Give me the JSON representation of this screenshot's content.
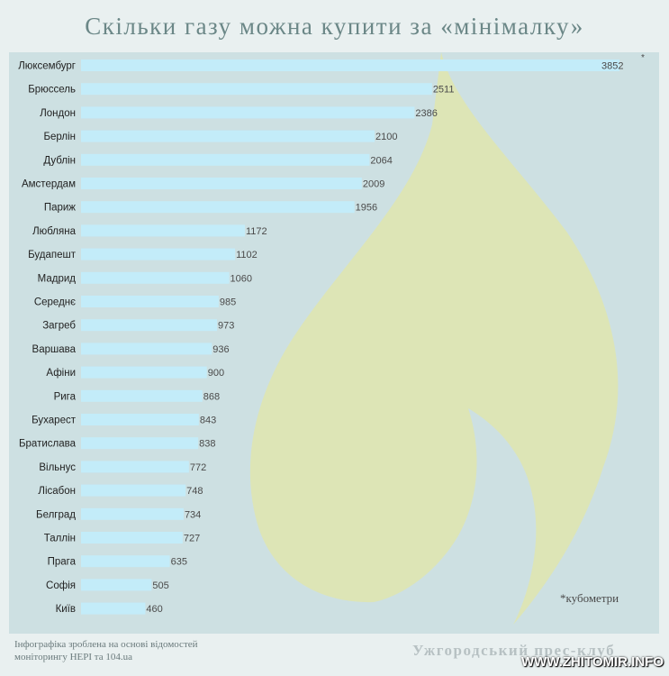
{
  "header": {
    "title": "Скільки газу можна купити за «мінімалку»"
  },
  "chart_data": {
    "type": "bar",
    "orientation": "horizontal",
    "categories": [
      "Люксембург",
      "Брюссель",
      "Лондон",
      "Берлін",
      "Дублін",
      "Амстердам",
      "Париж",
      "Любляна",
      "Будапешт",
      "Мадрид",
      "Середнє",
      "Загреб",
      "Варшава",
      "Афіни",
      "Рига",
      "Бухарест",
      "Братислава",
      "Вільнус",
      "Лісабон",
      "Белград",
      "Таллін",
      "Прага",
      "Софія",
      "Київ"
    ],
    "values": [
      3852,
      2511,
      2386,
      2100,
      2064,
      2009,
      1956,
      1172,
      1102,
      1060,
      985,
      973,
      936,
      900,
      868,
      843,
      838,
      772,
      748,
      734,
      727,
      635,
      505,
      460
    ],
    "unit_marker": "*",
    "unit_note": "*кубометри",
    "xlim": [
      0,
      3852
    ],
    "colors": {
      "bar": "#c3ecf9",
      "flame": "#dde5b6",
      "panel": "#cde0e2",
      "label": "#222222",
      "value": "#4a4a4a"
    },
    "grid": false,
    "legend": "none"
  },
  "footer": {
    "note_line1": "Інфографіка зроблена на основі відомостей",
    "note_line2": "моніторингу НЕРІ та 104.ua",
    "brand": "Ужгородський прес-клуб",
    "watermark": "WWW.ZHITOMIR.INFO"
  }
}
